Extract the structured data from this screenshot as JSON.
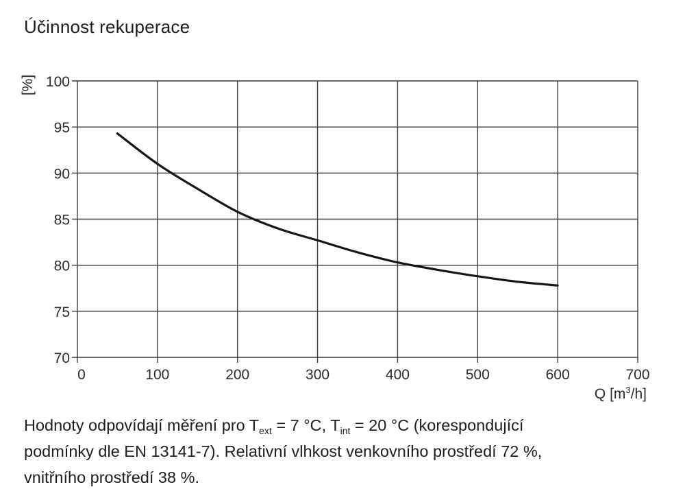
{
  "title": "Účinnost rekuperace",
  "chart_data": {
    "type": "line",
    "title": "Účinnost rekuperace",
    "xlabel": "Q [m3/h]",
    "xlabel_parts": {
      "prefix": "Q [m",
      "sup": "3",
      "suffix": "/h]"
    },
    "ylabel": "[%]",
    "xlim": [
      0,
      700
    ],
    "ylim": [
      70,
      100
    ],
    "x_ticks": [
      0,
      100,
      200,
      300,
      400,
      500,
      600,
      700
    ],
    "y_ticks": [
      100,
      95,
      90,
      85,
      80,
      75,
      70
    ],
    "grid": true,
    "legend": "none",
    "series": [
      {
        "name": "účinnost rekuperace",
        "x": [
          50,
          100,
          150,
          200,
          250,
          300,
          350,
          400,
          450,
          500,
          550,
          600
        ],
        "y": [
          94.3,
          91.0,
          88.3,
          85.8,
          84.0,
          82.7,
          81.4,
          80.3,
          79.5,
          78.8,
          78.2,
          77.8
        ],
        "color": "#161616"
      }
    ]
  },
  "footnote": {
    "line1_parts": [
      "Hodnoty odpovídají měření pro T",
      "ext",
      " = 7 °C, T",
      "int",
      " = 20 °C (korespondující"
    ],
    "line2": "podmínky dle EN 13141-7). Relativní vlhkost venkovního prostředí 72 %,",
    "line3": "vnitřního prostředí 38 %."
  },
  "colors": {
    "background": "#ffffff",
    "grid": "#3d3d3d",
    "curve": "#161616",
    "text": "#1d1d1d"
  }
}
